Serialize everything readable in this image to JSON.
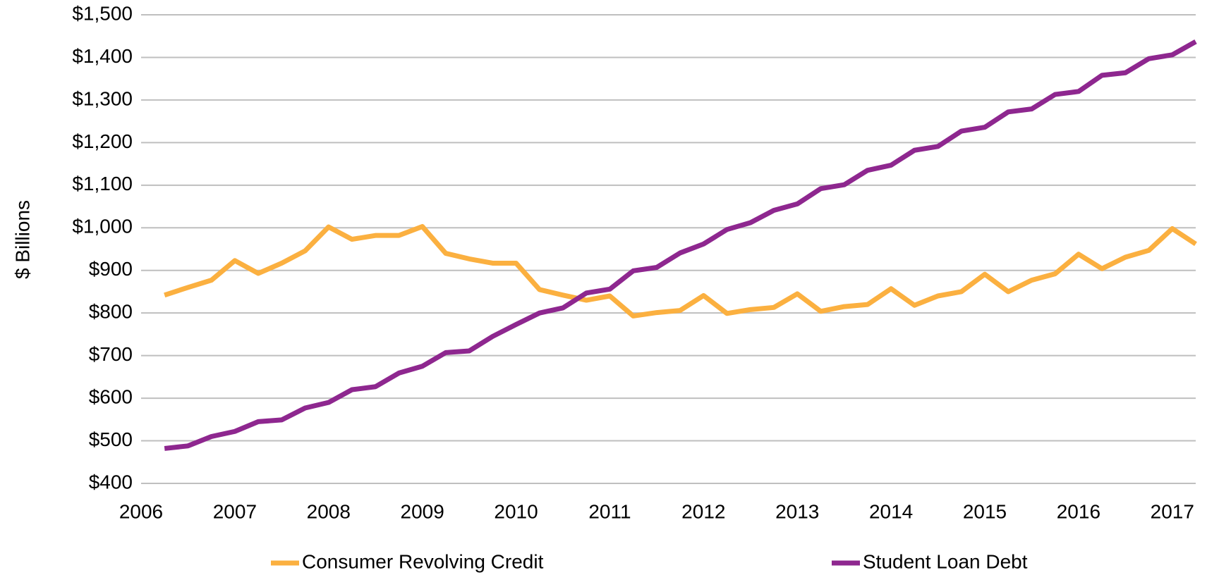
{
  "chart_data": {
    "type": "line",
    "y_label": "$ Billions",
    "x": [
      2006.25,
      2006.5,
      2006.75,
      2007,
      2007.25,
      2007.5,
      2007.75,
      2008,
      2008.25,
      2008.5,
      2008.75,
      2009,
      2009.25,
      2009.5,
      2009.75,
      2010,
      2010.25,
      2010.5,
      2010.75,
      2011,
      2011.25,
      2011.5,
      2011.75,
      2012,
      2012.25,
      2012.5,
      2012.75,
      2013,
      2013.25,
      2013.5,
      2013.75,
      2014,
      2014.25,
      2014.5,
      2014.75,
      2015,
      2015.25,
      2015.5,
      2015.75,
      2016,
      2016.25,
      2016.5,
      2016.75,
      2017,
      2017.25
    ],
    "series": [
      {
        "name": "Consumer Revolving Credit",
        "color": "#fbb040",
        "values": [
          842,
          860,
          877,
          923,
          893,
          917,
          946,
          1002,
          973,
          982,
          982,
          1003,
          940,
          927,
          917,
          917,
          855,
          842,
          830,
          840,
          793,
          801,
          806,
          841,
          799,
          808,
          813,
          845,
          804,
          815,
          820,
          857,
          818,
          840,
          850,
          891,
          850,
          877,
          892,
          938,
          904,
          931,
          947,
          998,
          962
        ]
      },
      {
        "name": "Student Loan Debt",
        "color": "#8e278f",
        "values": [
          482,
          488,
          510,
          522,
          545,
          549,
          577,
          590,
          620,
          627,
          659,
          675,
          707,
          711,
          745,
          773,
          800,
          812,
          847,
          856,
          899,
          907,
          941,
          962,
          996,
          1012,
          1041,
          1056,
          1092,
          1101,
          1135,
          1147,
          1182,
          1191,
          1227,
          1236,
          1272,
          1279,
          1313,
          1320,
          1358,
          1364,
          1397,
          1406,
          1437
        ]
      }
    ],
    "xlim": [
      2006,
      2017.25
    ],
    "xticks": [
      2006,
      2007,
      2008,
      2009,
      2010,
      2011,
      2012,
      2013,
      2014,
      2015,
      2016,
      2017
    ],
    "ylim": [
      400,
      1500
    ],
    "yticks": [
      {
        "value": 400,
        "label": "$400"
      },
      {
        "value": 500,
        "label": "$500"
      },
      {
        "value": 600,
        "label": "$600"
      },
      {
        "value": 700,
        "label": "$700"
      },
      {
        "value": 800,
        "label": "$800"
      },
      {
        "value": 900,
        "label": "$900"
      },
      {
        "value": 1000,
        "label": "$1,000"
      },
      {
        "value": 1100,
        "label": "$1,100"
      },
      {
        "value": 1200,
        "label": "$1,200"
      },
      {
        "value": 1300,
        "label": "$1,300"
      },
      {
        "value": 1400,
        "label": "$1,400"
      },
      {
        "value": 1500,
        "label": "$1,500"
      }
    ],
    "grid": true,
    "legend": "bottom"
  }
}
